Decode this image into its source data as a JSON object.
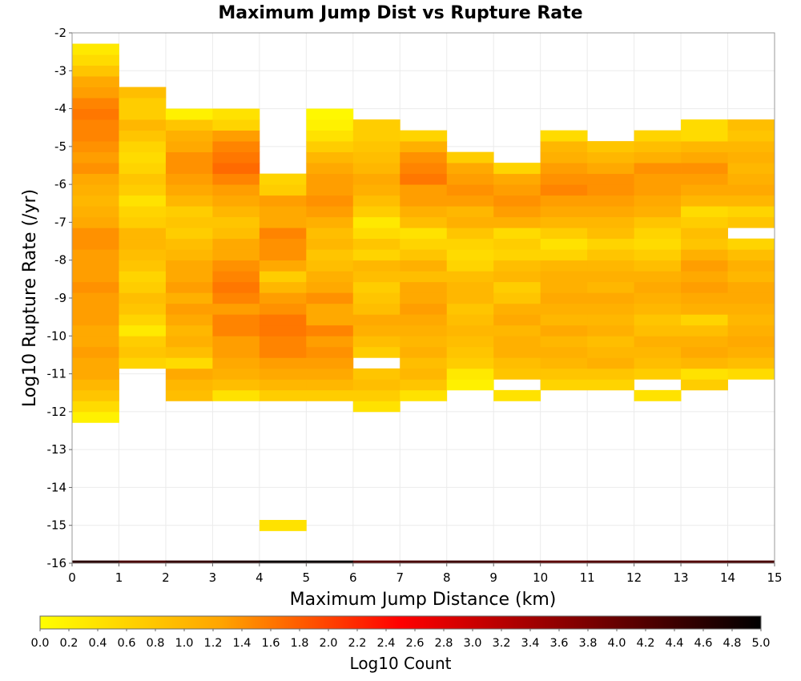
{
  "chart_data": {
    "type": "heatmap",
    "title": "Maximum Jump Dist vs Rupture Rate",
    "xlabel": "Maximum Jump Distance (km)",
    "ylabel": "Log10 Rupture Rate (/yr)",
    "xlim": [
      0,
      15
    ],
    "ylim": [
      -16,
      -2
    ],
    "x_ticks": [
      "0",
      "1",
      "2",
      "3",
      "4",
      "5",
      "6",
      "7",
      "8",
      "9",
      "10",
      "11",
      "12",
      "13",
      "14",
      "15"
    ],
    "y_ticks": [
      "-2",
      "-3",
      "-4",
      "-5",
      "-6",
      "-7",
      "-8",
      "-9",
      "-10",
      "-11",
      "-12",
      "-13",
      "-14",
      "-15",
      "-16"
    ],
    "x_bin_width": 1,
    "y_bin_height": 0.2857,
    "y_bin_origin": -16,
    "colorbar": {
      "label": "Log10 Count",
      "min": 0.0,
      "max": 5.0,
      "ticks": [
        "0.0",
        "0.2",
        "0.4",
        "0.6",
        "0.8",
        "1.0",
        "1.2",
        "1.4",
        "1.6",
        "1.8",
        "2.0",
        "2.2",
        "2.4",
        "2.6",
        "2.8",
        "3.0",
        "3.2",
        "3.4",
        "3.6",
        "3.8",
        "4.0",
        "4.2",
        "4.4",
        "4.6",
        "4.8",
        "5.0"
      ],
      "colors": [
        "#ffff00",
        "#ffa500",
        "#ff0000",
        "#800000",
        "#000000"
      ]
    },
    "columns": [
      {
        "x": 0,
        "row_start": 13,
        "values": [
          0.2,
          0.5,
          0.8,
          1.0,
          1.2,
          1.2,
          1.3,
          1.2,
          1.2,
          1.3,
          1.3,
          1.3,
          1.4,
          1.3,
          1.3,
          1.3,
          1.4,
          1.4,
          1.2,
          1.1,
          1.0,
          1.1,
          1.2,
          1.4,
          1.3,
          1.4,
          1.5,
          1.5,
          1.6,
          1.5,
          1.3,
          1.2,
          0.8,
          0.5,
          0.3
        ]
      },
      {
        "x": 1,
        "row_start": 18,
        "values": [
          0.6,
          0.8,
          0.7,
          0.3,
          0.6,
          0.8,
          0.9,
          0.7,
          0.6,
          0.8,
          0.9,
          1.0,
          1.0,
          0.7,
          0.6,
          0.4,
          0.7,
          0.8,
          0.6,
          0.5,
          0.6,
          0.8,
          1.0,
          0.7,
          0.7,
          0.9
        ]
      },
      {
        "x": 2,
        "row_start": 15,
        "values": [
          0.9,
          1.0,
          1.2,
          0.5,
          0.9,
          1.1,
          1.0,
          1.2,
          1.3,
          1.1,
          1.3,
          1.2,
          1.2,
          1.0,
          0.9,
          0.7,
          0.8,
          0.7,
          1.0,
          1.2,
          1.3,
          1.4,
          1.4,
          1.2,
          1.1,
          0.8,
          0.2
        ]
      },
      {
        "x": 3,
        "row_start": 15,
        "values": [
          0.4,
          0.9,
          1.1,
          1.2,
          1.3,
          1.3,
          1.5,
          1.5,
          1.3,
          1.5,
          1.6,
          1.5,
          1.4,
          1.2,
          1.2,
          0.9,
          0.8,
          1.0,
          1.2,
          1.3,
          1.5,
          1.7,
          1.6,
          1.5,
          1.3,
          0.6,
          0.4
        ]
      },
      {
        "x": 4,
        "row_start": 3,
        "values": [
          0.4,
          null,
          null,
          null,
          null,
          null,
          null,
          null,
          null,
          null,
          null,
          null,
          0.7,
          1.0,
          1.2,
          1.3,
          1.5,
          1.5,
          1.6,
          1.6,
          1.4,
          1.3,
          1.0,
          0.7,
          1.2,
          1.4,
          1.4,
          1.5,
          1.2,
          1.2,
          1.3,
          0.7,
          0.6
        ]
      },
      {
        "x": 5,
        "row_start": 15,
        "values": [
          0.7,
          1.0,
          1.2,
          1.3,
          1.4,
          1.3,
          1.5,
          1.2,
          1.2,
          1.4,
          1.2,
          1.1,
          0.9,
          0.8,
          1.0,
          0.9,
          1.1,
          1.3,
          1.4,
          1.3,
          1.3,
          1.2,
          1.0,
          0.7,
          0.4,
          0.2,
          0.1
        ]
      },
      {
        "x": 6,
        "row_start": 14,
        "values": [
          0.4,
          0.7,
          0.9,
          0.8,
          null,
          0.7,
          0.9,
          1.1,
          1.2,
          0.9,
          0.8,
          0.7,
          0.9,
          1.0,
          0.6,
          0.8,
          0.5,
          0.3,
          0.7,
          0.9,
          1.1,
          1.2,
          1.0,
          0.9,
          0.8,
          0.7,
          0.7
        ]
      },
      {
        "x": 7,
        "row_start": 15,
        "values": [
          0.4,
          0.8,
          1.0,
          0.9,
          1.1,
          1.0,
          1.1,
          1.2,
          1.3,
          1.2,
          1.2,
          0.9,
          1.1,
          0.8,
          0.6,
          0.4,
          0.9,
          1.1,
          1.3,
          1.3,
          1.6,
          1.5,
          1.4,
          1.1,
          0.6
        ]
      },
      {
        "x": 8,
        "row_start": 16,
        "values": [
          0.2,
          0.3,
          0.7,
          0.8,
          0.9,
          1.0,
          0.9,
          0.8,
          1.0,
          1.0,
          0.9,
          0.6,
          0.5,
          0.6,
          0.8,
          1.1,
          1.0,
          1.3,
          1.4,
          1.3,
          1.2,
          0.7
        ]
      },
      {
        "x": 9,
        "row_start": 15,
        "values": [
          0.4,
          null,
          0.8,
          0.9,
          1.1,
          1.1,
          1.0,
          1.2,
          1.1,
          0.8,
          0.7,
          1.0,
          0.9,
          0.6,
          0.7,
          0.5,
          1.1,
          1.3,
          1.4,
          1.3,
          1.2,
          0.6
        ]
      },
      {
        "x": 10,
        "row_start": 16,
        "values": [
          0.6,
          0.8,
          1.0,
          1.1,
          1.0,
          1.2,
          1.0,
          1.1,
          1.2,
          1.1,
          1.1,
          1.0,
          0.6,
          0.4,
          0.7,
          1.0,
          1.2,
          1.3,
          1.5,
          1.4,
          1.3,
          1.1,
          1.0,
          0.5
        ]
      },
      {
        "x": 11,
        "row_start": 16,
        "values": [
          0.6,
          0.8,
          1.1,
          1.0,
          0.9,
          1.1,
          1.0,
          1.1,
          1.2,
          1.0,
          1.1,
          1.0,
          0.8,
          0.6,
          0.9,
          1.0,
          1.2,
          1.3,
          1.4,
          1.4,
          1.2,
          1.0,
          0.8
        ]
      },
      {
        "x": 12,
        "row_start": 15,
        "values": [
          0.4,
          null,
          0.7,
          0.9,
          1.0,
          1.1,
          0.9,
          0.8,
          1.0,
          1.1,
          1.2,
          1.1,
          0.9,
          0.7,
          0.5,
          0.6,
          0.8,
          1.1,
          1.2,
          1.3,
          1.3,
          1.4,
          1.1,
          0.9,
          0.6
        ]
      },
      {
        "x": 13,
        "row_start": 16,
        "values": [
          0.7,
          0.4,
          1.0,
          1.2,
          1.1,
          0.9,
          0.6,
          1.1,
          1.2,
          1.3,
          1.2,
          1.3,
          1.1,
          0.8,
          0.9,
          0.7,
          0.5,
          1.0,
          1.2,
          1.3,
          1.4,
          1.2,
          1.0,
          0.5,
          0.5
        ]
      },
      {
        "x": 14,
        "row_start": 17,
        "values": [
          0.5,
          0.9,
          1.1,
          1.2,
          1.1,
          1.0,
          1.1,
          1.2,
          1.2,
          1.0,
          1.1,
          0.9,
          0.6,
          null,
          0.8,
          0.6,
          1.0,
          1.2,
          1.1,
          1.0,
          1.1,
          1.0,
          0.8,
          0.9
        ]
      }
    ],
    "bottom_row": {
      "x": [
        0,
        1,
        2,
        3,
        4,
        5,
        6,
        7,
        8,
        9,
        10,
        11,
        12,
        13,
        14
      ],
      "y": -16,
      "values": [
        4.6,
        4.3,
        4.5,
        4.7,
        4.9,
        4.9,
        4.2,
        4.3,
        4.4,
        4.3,
        4.1,
        4.2,
        4.3,
        4.2,
        4.3
      ]
    }
  }
}
